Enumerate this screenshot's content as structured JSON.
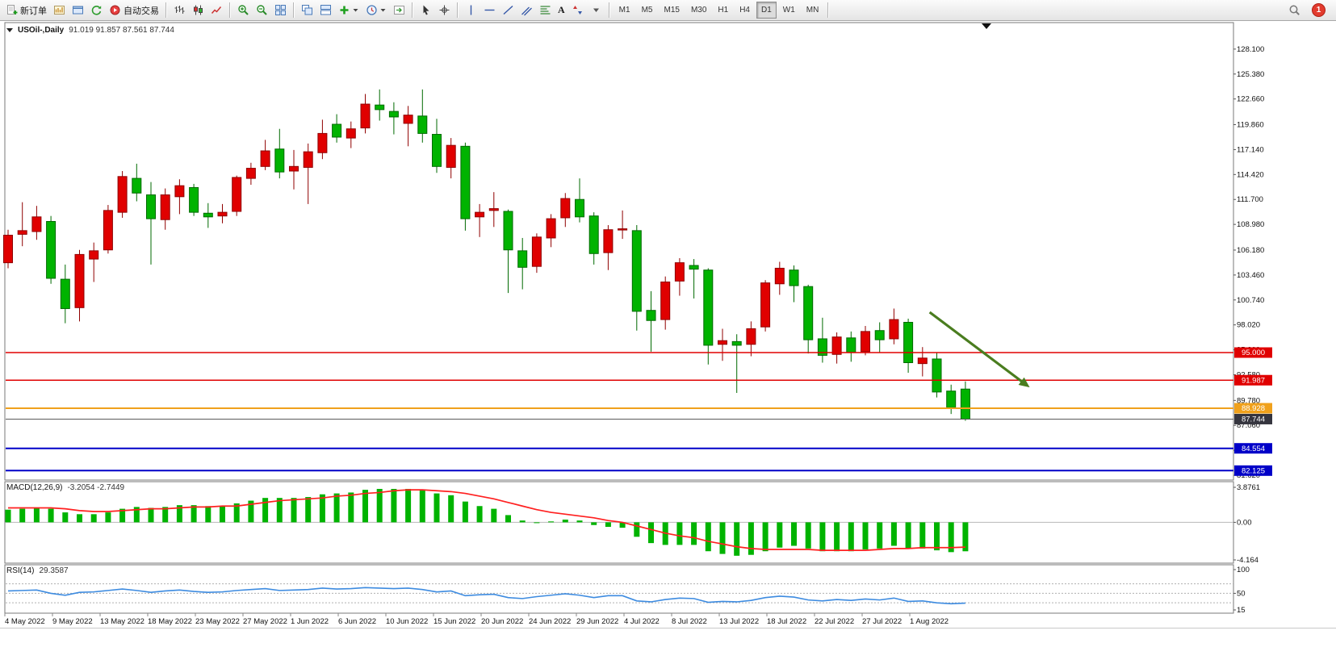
{
  "toolbar": {
    "groups": [
      {
        "items": [
          {
            "name": "new-order-button",
            "icon": "new-order-icon",
            "label": "新订单"
          },
          {
            "name": "new-chart-button",
            "icon": "new-chart-icon"
          },
          {
            "name": "profiles-button",
            "icon": "profiles-icon"
          },
          {
            "name": "refresh-button",
            "icon": "refresh-icon"
          },
          {
            "name": "autotrading-button",
            "icon": "autotrading-icon",
            "label": "自动交易"
          }
        ]
      },
      {
        "items": [
          {
            "name": "bar-chart-button",
            "icon": "bars-icon"
          },
          {
            "name": "candlestick-chart-button",
            "icon": "candles-icon"
          },
          {
            "name": "line-chart-button",
            "icon": "line-chart-icon"
          }
        ]
      },
      {
        "items": [
          {
            "name": "zoom-in-button",
            "icon": "zoom-in-icon"
          },
          {
            "name": "zoom-out-button",
            "icon": "zoom-out-icon"
          },
          {
            "name": "tile-windows-button",
            "icon": "tile-windows-icon"
          }
        ]
      },
      {
        "items": [
          {
            "name": "cascade-windows-button",
            "icon": "cascade-icon"
          },
          {
            "name": "arrange-windows-button",
            "icon": "arrange-icon"
          },
          {
            "name": "add-indicator-button",
            "icon": "add-indicator-icon",
            "dropdown": true
          },
          {
            "name": "period-button",
            "icon": "clock-icon",
            "dropdown": true
          },
          {
            "name": "chart-shift-button",
            "icon": "chart-shift-icon"
          }
        ]
      },
      {
        "items": [
          {
            "name": "cursor-button",
            "icon": "cursor-icon"
          },
          {
            "name": "crosshair-button",
            "icon": "crosshair-icon"
          }
        ]
      },
      {
        "items": [
          {
            "name": "vertical-line-button",
            "icon": "vline-icon"
          },
          {
            "name": "horizontal-line-button",
            "icon": "hline-icon"
          },
          {
            "name": "trendline-button",
            "icon": "trendline-icon"
          },
          {
            "name": "channel-button",
            "icon": "channel-icon"
          },
          {
            "name": "fibonacci-button",
            "icon": "fibonacci-icon"
          },
          {
            "name": "text-tool-button",
            "label": "A"
          },
          {
            "name": "arrows-tool-button",
            "icon": "arrows-icon"
          },
          {
            "name": "objects-dropdown-button",
            "icon": "dropdown-icon"
          }
        ]
      }
    ],
    "timeframes": [
      {
        "name": "timeframe-m1",
        "label": "M1"
      },
      {
        "name": "timeframe-m5",
        "label": "M5"
      },
      {
        "name": "timeframe-m15",
        "label": "M15"
      },
      {
        "name": "timeframe-m30",
        "label": "M30"
      },
      {
        "name": "timeframe-h1",
        "label": "H1"
      },
      {
        "name": "timeframe-h4",
        "label": "H4"
      },
      {
        "name": "timeframe-d1",
        "label": "D1",
        "active": true
      },
      {
        "name": "timeframe-w1",
        "label": "W1"
      },
      {
        "name": "timeframe-mn",
        "label": "MN"
      }
    ],
    "notification_badge": "1"
  },
  "chart": {
    "symbol_period": "USOil-,Daily",
    "ohlc_text": "91.019 91.857 87.561 87.744",
    "macd_label": "MACD(12,26,9)",
    "macd_values": "-3.2054 -2.7449",
    "rsi_label": "RSI(14)",
    "rsi_value": "29.3587"
  },
  "chart_data": {
    "type": "candlestick",
    "symbol": "USOil",
    "timeframe": "Daily",
    "ohlc_display": {
      "open": 91.019,
      "high": 91.857,
      "low": 87.561,
      "close": 87.744
    },
    "price_axis_ticks": [
      "128.100",
      "125.380",
      "122.660",
      "119.860",
      "117.140",
      "114.420",
      "111.700",
      "108.980",
      "106.180",
      "103.460",
      "100.740",
      "98.020",
      "95.300",
      "92.580",
      "89.780",
      "87.060",
      "84.340",
      "81.620"
    ],
    "date_labels": [
      "4 May 2022",
      "9 May 2022",
      "13 May 2022",
      "18 May 2022",
      "23 May 2022",
      "27 May 2022",
      "1 Jun 2022",
      "6 Jun 2022",
      "10 Jun 2022",
      "15 Jun 2022",
      "20 Jun 2022",
      "24 Jun 2022",
      "29 Jun 2022",
      "4 Jul 2022",
      "8 Jul 2022",
      "13 Jul 2022",
      "18 Jul 2022",
      "22 Jul 2022",
      "27 Jul 2022",
      "1 Aug 2022"
    ],
    "candle_format": [
      "date",
      "open",
      "high",
      "low",
      "close"
    ],
    "candles": [
      [
        "2022-05-04",
        104.8,
        108.4,
        104.2,
        107.8
      ],
      [
        "2022-05-05",
        107.9,
        111.4,
        106.6,
        108.3
      ],
      [
        "2022-05-06",
        108.2,
        111.0,
        107.3,
        109.8
      ],
      [
        "2022-05-09",
        109.3,
        109.9,
        102.5,
        103.1
      ],
      [
        "2022-05-10",
        103.0,
        104.6,
        98.2,
        99.8
      ],
      [
        "2022-05-11",
        99.9,
        106.2,
        98.4,
        105.7
      ],
      [
        "2022-05-12",
        105.2,
        107.0,
        102.7,
        106.1
      ],
      [
        "2022-05-13",
        106.2,
        111.1,
        105.8,
        110.5
      ],
      [
        "2022-05-16",
        110.3,
        114.8,
        109.7,
        114.2
      ],
      [
        "2022-05-17",
        114.0,
        115.6,
        111.5,
        112.4
      ],
      [
        "2022-05-18",
        112.2,
        113.6,
        104.6,
        109.6
      ],
      [
        "2022-05-19",
        109.5,
        112.9,
        108.4,
        112.2
      ],
      [
        "2022-05-20",
        112.0,
        113.9,
        110.1,
        113.2
      ],
      [
        "2022-05-23",
        113.0,
        113.4,
        109.9,
        110.3
      ],
      [
        "2022-05-24",
        110.2,
        111.3,
        108.6,
        109.8
      ],
      [
        "2022-05-25",
        109.9,
        111.2,
        109.1,
        110.3
      ],
      [
        "2022-05-26",
        110.4,
        114.3,
        109.9,
        114.1
      ],
      [
        "2022-05-27",
        114.0,
        115.7,
        113.3,
        115.1
      ],
      [
        "2022-05-30",
        115.3,
        118.2,
        114.9,
        117.0
      ],
      [
        "2022-05-31",
        117.2,
        119.4,
        114.0,
        114.7
      ],
      [
        "2022-06-01",
        114.8,
        117.1,
        112.8,
        115.3
      ],
      [
        "2022-06-02",
        115.2,
        117.8,
        111.2,
        116.9
      ],
      [
        "2022-06-03",
        116.8,
        120.4,
        116.1,
        118.9
      ],
      [
        "2022-06-06",
        119.9,
        121.0,
        117.9,
        118.5
      ],
      [
        "2022-06-07",
        118.4,
        120.2,
        117.3,
        119.4
      ],
      [
        "2022-06-08",
        119.5,
        123.2,
        118.9,
        122.1
      ],
      [
        "2022-06-09",
        122.0,
        123.7,
        120.3,
        121.5
      ],
      [
        "2022-06-10",
        121.3,
        122.3,
        118.8,
        120.7
      ],
      [
        "2022-06-13",
        120.0,
        121.9,
        117.5,
        120.9
      ],
      [
        "2022-06-14",
        120.8,
        123.7,
        117.9,
        118.9
      ],
      [
        "2022-06-15",
        118.8,
        120.5,
        114.6,
        115.3
      ],
      [
        "2022-06-16",
        115.2,
        118.4,
        114.0,
        117.6
      ],
      [
        "2022-06-17",
        117.5,
        117.9,
        108.3,
        109.6
      ],
      [
        "2022-06-20",
        109.8,
        111.2,
        107.6,
        110.3
      ],
      [
        "2022-06-21",
        110.5,
        112.5,
        108.7,
        110.7
      ],
      [
        "2022-06-22",
        110.4,
        110.6,
        101.5,
        106.2
      ],
      [
        "2022-06-23",
        106.1,
        107.5,
        101.9,
        104.3
      ],
      [
        "2022-06-24",
        104.4,
        108.0,
        103.7,
        107.6
      ],
      [
        "2022-06-27",
        107.5,
        110.1,
        106.5,
        109.6
      ],
      [
        "2022-06-28",
        109.7,
        112.4,
        108.7,
        111.8
      ],
      [
        "2022-06-29",
        111.7,
        114.0,
        109.2,
        109.8
      ],
      [
        "2022-06-30",
        109.9,
        110.3,
        104.6,
        105.8
      ],
      [
        "2022-07-01",
        105.9,
        108.9,
        104.0,
        108.4
      ],
      [
        "2022-07-04",
        108.4,
        110.5,
        107.4,
        108.5
      ],
      [
        "2022-07-05",
        108.3,
        108.9,
        97.4,
        99.5
      ],
      [
        "2022-07-06",
        99.6,
        101.7,
        95.1,
        98.5
      ],
      [
        "2022-07-07",
        98.6,
        103.3,
        97.5,
        102.7
      ],
      [
        "2022-07-08",
        102.8,
        105.3,
        101.2,
        104.8
      ],
      [
        "2022-07-11",
        104.5,
        105.2,
        100.9,
        104.1
      ],
      [
        "2022-07-12",
        104.0,
        104.2,
        93.7,
        95.8
      ],
      [
        "2022-07-13",
        95.9,
        97.6,
        94.1,
        96.3
      ],
      [
        "2022-07-14",
        96.2,
        97.0,
        90.6,
        95.8
      ],
      [
        "2022-07-15",
        95.9,
        98.4,
        94.6,
        97.6
      ],
      [
        "2022-07-18",
        97.8,
        102.9,
        97.3,
        102.6
      ],
      [
        "2022-07-19",
        102.5,
        104.9,
        101.3,
        104.2
      ],
      [
        "2022-07-20",
        104.0,
        104.5,
        100.5,
        102.3
      ],
      [
        "2022-07-21",
        102.2,
        102.4,
        94.9,
        96.4
      ],
      [
        "2022-07-22",
        96.5,
        98.8,
        93.9,
        94.7
      ],
      [
        "2022-07-25",
        94.8,
        97.2,
        93.8,
        96.7
      ],
      [
        "2022-07-26",
        96.6,
        97.3,
        94.0,
        95.0
      ],
      [
        "2022-07-27",
        95.1,
        97.9,
        94.7,
        97.3
      ],
      [
        "2022-07-28",
        97.4,
        98.3,
        95.0,
        96.4
      ],
      [
        "2022-07-29",
        96.5,
        99.8,
        95.9,
        98.6
      ],
      [
        "2022-08-01",
        98.3,
        98.7,
        92.8,
        93.9
      ],
      [
        "2022-08-02",
        93.8,
        95.6,
        92.4,
        94.4
      ],
      [
        "2022-08-03",
        94.3,
        95.0,
        90.1,
        90.7
      ],
      [
        "2022-08-04",
        90.8,
        91.5,
        88.3,
        89.0
      ],
      [
        "2022-08-05",
        91.019,
        91.857,
        87.561,
        87.744
      ]
    ],
    "hlines": [
      {
        "price": 95.0,
        "label": "95.000",
        "color": "#e00000",
        "width": 1.4
      },
      {
        "price": 91.987,
        "label": "91.987",
        "color": "#e00000",
        "width": 1.4
      },
      {
        "price": 88.928,
        "label": "88.928",
        "color": "#f0a11c",
        "width": 2
      },
      {
        "price": 84.554,
        "label": "84.554",
        "color": "#0000c8",
        "width": 2
      },
      {
        "price": 82.125,
        "label": "82.125",
        "color": "#0000c8",
        "width": 2
      }
    ],
    "current_price": {
      "price": 87.744,
      "label": "87.744",
      "line_color": "#5a5a5a",
      "box_color": "#35353f"
    },
    "trend_arrow": {
      "from": {
        "index": 64.5,
        "price": 99.4
      },
      "to": {
        "index": 71.5,
        "price": 91.2
      },
      "color": "#4a7d1f",
      "width": 3.2
    },
    "macd": {
      "label": "MACD(12,26,9)",
      "main_value": -3.2054,
      "signal_value": -2.7449,
      "axis": [
        "3.8761",
        "0.00",
        "-4.164"
      ],
      "scale_max": 3.8761,
      "scale_min": -4.164,
      "hist_color": "#00b300",
      "signal_color": "#ff2020",
      "histogram": [
        1.4,
        1.5,
        1.6,
        1.5,
        1.1,
        0.9,
        0.9,
        1.1,
        1.5,
        1.7,
        1.6,
        1.7,
        1.9,
        1.9,
        1.8,
        1.8,
        2.1,
        2.4,
        2.7,
        2.7,
        2.7,
        2.8,
        3.1,
        3.2,
        3.3,
        3.6,
        3.7,
        3.7,
        3.7,
        3.6,
        3.2,
        3.0,
        2.3,
        1.8,
        1.5,
        0.8,
        0.2,
        0.0,
        0.1,
        0.3,
        0.2,
        -0.3,
        -0.5,
        -0.6,
        -1.6,
        -2.3,
        -2.5,
        -2.5,
        -2.5,
        -3.2,
        -3.5,
        -3.7,
        -3.6,
        -3.2,
        -2.8,
        -2.6,
        -2.9,
        -3.2,
        -3.2,
        -3.2,
        -3.0,
        -2.9,
        -2.6,
        -2.9,
        -2.9,
        -3.1,
        -3.3,
        -3.2054
      ],
      "signal": [
        1.6,
        1.6,
        1.6,
        1.6,
        1.5,
        1.3,
        1.2,
        1.2,
        1.3,
        1.4,
        1.5,
        1.5,
        1.6,
        1.7,
        1.7,
        1.8,
        1.8,
        2.0,
        2.2,
        2.4,
        2.5,
        2.6,
        2.7,
        2.9,
        3.0,
        3.2,
        3.3,
        3.5,
        3.6,
        3.6,
        3.5,
        3.4,
        3.2,
        2.9,
        2.6,
        2.2,
        1.8,
        1.4,
        1.1,
        0.9,
        0.7,
        0.5,
        0.2,
        0.0,
        -0.4,
        -0.8,
        -1.2,
        -1.5,
        -1.7,
        -2.1,
        -2.4,
        -2.7,
        -2.9,
        -3.0,
        -3.0,
        -3.0,
        -3.0,
        -3.1,
        -3.1,
        -3.1,
        -3.1,
        -3.0,
        -2.9,
        -2.9,
        -2.8,
        -2.8,
        -2.8,
        -2.7449
      ]
    },
    "rsi": {
      "label": "RSI(14)",
      "value": 29.3587,
      "axis": [
        "100",
        "50",
        "15"
      ],
      "levels": [
        70,
        50,
        30
      ],
      "color": "#3d8be0",
      "series": [
        55,
        56,
        57,
        50,
        46,
        52,
        53,
        56,
        59,
        56,
        52,
        55,
        57,
        54,
        52,
        53,
        56,
        58,
        60,
        56,
        57,
        58,
        61,
        59,
        60,
        62,
        61,
        60,
        61,
        58,
        53,
        55,
        45,
        47,
        48,
        41,
        39,
        43,
        46,
        49,
        46,
        41,
        45,
        45,
        34,
        32,
        37,
        40,
        39,
        31,
        33,
        32,
        35,
        41,
        44,
        42,
        36,
        34,
        37,
        35,
        38,
        36,
        40,
        33,
        34,
        30,
        28,
        29.36
      ]
    },
    "colors": {
      "bull": "#e00000",
      "bear": "#00b300",
      "background": "#ffffff",
      "border": "#7a7a7a"
    }
  }
}
